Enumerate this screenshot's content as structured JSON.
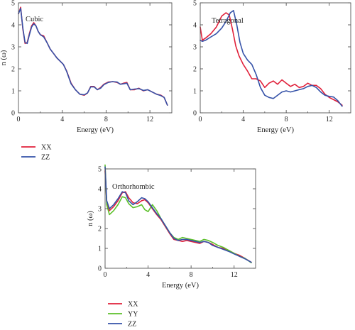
{
  "colors": {
    "XX": "#e0203a",
    "YY": "#5cc02a",
    "ZZ": "#3552a8",
    "axis": "#555555"
  },
  "chart_data": [
    {
      "type": "line",
      "title": "Cubic",
      "xlabel": "Energy (eV)",
      "ylabel": "n (ω)",
      "xlim": [
        0,
        14
      ],
      "ylim": [
        0,
        5
      ],
      "xticks": [
        0,
        4,
        8,
        12
      ],
      "yticks": [
        0,
        1,
        2,
        3,
        4,
        5
      ],
      "grid": false,
      "legend": "below",
      "series": [
        {
          "name": "XX",
          "color_key": "XX",
          "x": [
            0,
            0.2,
            0.4,
            0.6,
            0.8,
            1.0,
            1.2,
            1.4,
            1.6,
            1.8,
            2.0,
            2.3,
            2.6,
            2.9,
            3.2,
            3.5,
            3.8,
            4.1,
            4.4,
            4.8,
            5.2,
            5.6,
            6.0,
            6.3,
            6.6,
            6.9,
            7.2,
            7.5,
            7.8,
            8.2,
            8.6,
            9.0,
            9.3,
            9.6,
            9.9,
            10.2,
            10.6,
            11.0,
            11.4,
            11.8,
            12.2,
            12.6,
            13.0,
            13.3,
            13.6
          ],
          "y": [
            4.5,
            4.8,
            3.8,
            3.15,
            3.2,
            3.6,
            3.95,
            4.1,
            3.95,
            3.7,
            3.55,
            3.5,
            3.2,
            2.9,
            2.7,
            2.5,
            2.35,
            2.2,
            1.9,
            1.35,
            1.05,
            0.85,
            0.8,
            0.9,
            1.2,
            1.2,
            1.05,
            1.15,
            1.3,
            1.4,
            1.42,
            1.38,
            1.3,
            1.35,
            1.38,
            1.05,
            1.05,
            1.12,
            1.0,
            1.05,
            0.95,
            0.85,
            0.8,
            0.7,
            0.35
          ]
        },
        {
          "name": "ZZ",
          "color_key": "ZZ",
          "x": [
            0,
            0.2,
            0.4,
            0.6,
            0.8,
            1.0,
            1.2,
            1.4,
            1.6,
            1.8,
            2.0,
            2.3,
            2.6,
            2.9,
            3.2,
            3.5,
            3.8,
            4.1,
            4.4,
            4.8,
            5.2,
            5.6,
            6.0,
            6.3,
            6.6,
            6.9,
            7.2,
            7.5,
            7.8,
            8.2,
            8.6,
            9.0,
            9.3,
            9.6,
            9.9,
            10.2,
            10.6,
            11.0,
            11.4,
            11.8,
            12.2,
            12.6,
            13.0,
            13.3,
            13.6
          ],
          "y": [
            4.5,
            4.75,
            3.85,
            3.2,
            3.15,
            3.55,
            3.9,
            4.05,
            3.95,
            3.7,
            3.55,
            3.45,
            3.2,
            2.9,
            2.7,
            2.5,
            2.35,
            2.2,
            1.88,
            1.32,
            1.05,
            0.85,
            0.82,
            0.9,
            1.18,
            1.18,
            1.05,
            1.12,
            1.28,
            1.38,
            1.42,
            1.4,
            1.3,
            1.32,
            1.35,
            1.05,
            1.08,
            1.1,
            1.02,
            1.05,
            0.95,
            0.85,
            0.78,
            0.7,
            0.35
          ]
        }
      ]
    },
    {
      "type": "line",
      "title": "Tetragonal",
      "xlabel": "Energy (eV)",
      "ylabel": "",
      "xlim": [
        0,
        14
      ],
      "ylim": [
        0,
        5
      ],
      "xticks": [
        0,
        4,
        8,
        12
      ],
      "yticks": [
        0,
        1,
        2,
        3,
        4,
        5
      ],
      "grid": false,
      "legend": "none",
      "series": [
        {
          "name": "XX",
          "color_key": "XX",
          "x": [
            0,
            0.2,
            0.5,
            1.0,
            1.5,
            2.0,
            2.4,
            2.7,
            3.0,
            3.3,
            3.6,
            4.0,
            4.4,
            4.8,
            5.2,
            5.6,
            6.0,
            6.4,
            6.8,
            7.2,
            7.6,
            8.0,
            8.4,
            8.8,
            9.2,
            9.6,
            10.0,
            10.4,
            10.8,
            11.2,
            11.6,
            12.0,
            12.4,
            12.8,
            13.2
          ],
          "y": [
            3.9,
            3.3,
            3.4,
            3.6,
            3.9,
            4.4,
            4.55,
            4.45,
            3.8,
            3.05,
            2.6,
            2.2,
            1.9,
            1.55,
            1.55,
            1.45,
            1.15,
            1.35,
            1.45,
            1.3,
            1.5,
            1.35,
            1.2,
            1.3,
            1.15,
            1.2,
            1.35,
            1.25,
            1.25,
            1.1,
            0.85,
            0.7,
            0.6,
            0.5,
            0.35
          ]
        },
        {
          "name": "ZZ",
          "color_key": "ZZ",
          "x": [
            0,
            0.2,
            0.5,
            1.0,
            1.5,
            2.0,
            2.4,
            2.8,
            3.1,
            3.4,
            3.7,
            4.0,
            4.4,
            4.8,
            5.2,
            5.6,
            6.0,
            6.4,
            6.8,
            7.2,
            7.6,
            8.0,
            8.4,
            8.8,
            9.2,
            9.6,
            10.0,
            10.4,
            10.8,
            11.2,
            11.6,
            12.0,
            12.4,
            12.8,
            13.2
          ],
          "y": [
            3.3,
            3.25,
            3.3,
            3.45,
            3.6,
            3.85,
            4.15,
            4.55,
            4.65,
            4.0,
            3.2,
            2.7,
            2.4,
            2.2,
            1.75,
            1.15,
            0.8,
            0.7,
            0.65,
            0.8,
            0.95,
            1.0,
            0.95,
            1.0,
            1.05,
            1.1,
            1.2,
            1.25,
            1.15,
            0.95,
            0.8,
            0.75,
            0.72,
            0.55,
            0.3
          ]
        }
      ]
    },
    {
      "type": "line",
      "title": "Orthorhombic",
      "xlabel": "Energy (eV)",
      "ylabel": "n (ω)",
      "xlim": [
        0,
        14
      ],
      "ylim": [
        0,
        5
      ],
      "xticks": [
        0,
        4,
        8,
        12
      ],
      "yticks": [
        0,
        1,
        2,
        3,
        4,
        5
      ],
      "grid": false,
      "legend": "below",
      "series": [
        {
          "name": "XX",
          "color_key": "XX",
          "x": [
            0,
            0.15,
            0.4,
            0.8,
            1.2,
            1.6,
            1.9,
            2.2,
            2.6,
            3.0,
            3.4,
            3.7,
            4.0,
            4.4,
            4.8,
            5.2,
            5.6,
            6.0,
            6.4,
            6.8,
            7.2,
            7.6,
            8.0,
            8.4,
            8.8,
            9.2,
            9.6,
            10.0,
            10.5,
            11.0,
            11.5,
            12.0,
            12.5,
            13.0,
            13.6
          ],
          "y": [
            4.9,
            3.3,
            2.9,
            3.1,
            3.4,
            3.8,
            3.85,
            3.55,
            3.3,
            3.25,
            3.4,
            3.45,
            3.3,
            3.0,
            2.7,
            2.45,
            2.1,
            1.75,
            1.45,
            1.4,
            1.35,
            1.4,
            1.35,
            1.3,
            1.25,
            1.35,
            1.3,
            1.2,
            1.05,
            1.0,
            0.9,
            0.75,
            0.65,
            0.5,
            0.3
          ]
        },
        {
          "name": "YY",
          "color_key": "YY",
          "x": [
            0,
            0.15,
            0.4,
            0.8,
            1.2,
            1.6,
            1.9,
            2.2,
            2.6,
            3.0,
            3.4,
            3.7,
            4.0,
            4.4,
            4.8,
            5.2,
            5.6,
            6.0,
            6.4,
            6.8,
            7.2,
            7.6,
            8.0,
            8.4,
            8.8,
            9.2,
            9.6,
            10.0,
            10.5,
            11.0,
            11.5,
            12.0,
            12.5,
            13.0,
            13.6
          ],
          "y": [
            5.2,
            3.2,
            2.7,
            2.9,
            3.2,
            3.6,
            3.55,
            3.25,
            3.05,
            3.1,
            3.2,
            2.95,
            2.85,
            3.2,
            2.9,
            2.5,
            2.15,
            1.8,
            1.55,
            1.45,
            1.55,
            1.5,
            1.45,
            1.4,
            1.35,
            1.45,
            1.4,
            1.3,
            1.15,
            1.05,
            0.9,
            0.75,
            0.6,
            0.5,
            0.28
          ]
        },
        {
          "name": "ZZ",
          "color_key": "ZZ",
          "x": [
            0,
            0.15,
            0.4,
            0.8,
            1.2,
            1.6,
            1.9,
            2.2,
            2.6,
            3.0,
            3.4,
            3.7,
            4.0,
            4.4,
            4.8,
            5.2,
            5.6,
            6.0,
            6.4,
            6.8,
            7.2,
            7.6,
            8.0,
            8.4,
            8.8,
            9.2,
            9.6,
            10.0,
            10.5,
            11.0,
            11.5,
            12.0,
            12.5,
            13.0,
            13.6
          ],
          "y": [
            5.1,
            3.4,
            3.0,
            3.2,
            3.5,
            3.85,
            3.8,
            3.4,
            3.2,
            3.35,
            3.55,
            3.5,
            3.35,
            3.05,
            2.75,
            2.5,
            2.15,
            1.8,
            1.5,
            1.4,
            1.45,
            1.45,
            1.4,
            1.35,
            1.3,
            1.35,
            1.3,
            1.15,
            1.05,
            0.95,
            0.85,
            0.72,
            0.6,
            0.48,
            0.3
          ]
        }
      ]
    }
  ]
}
